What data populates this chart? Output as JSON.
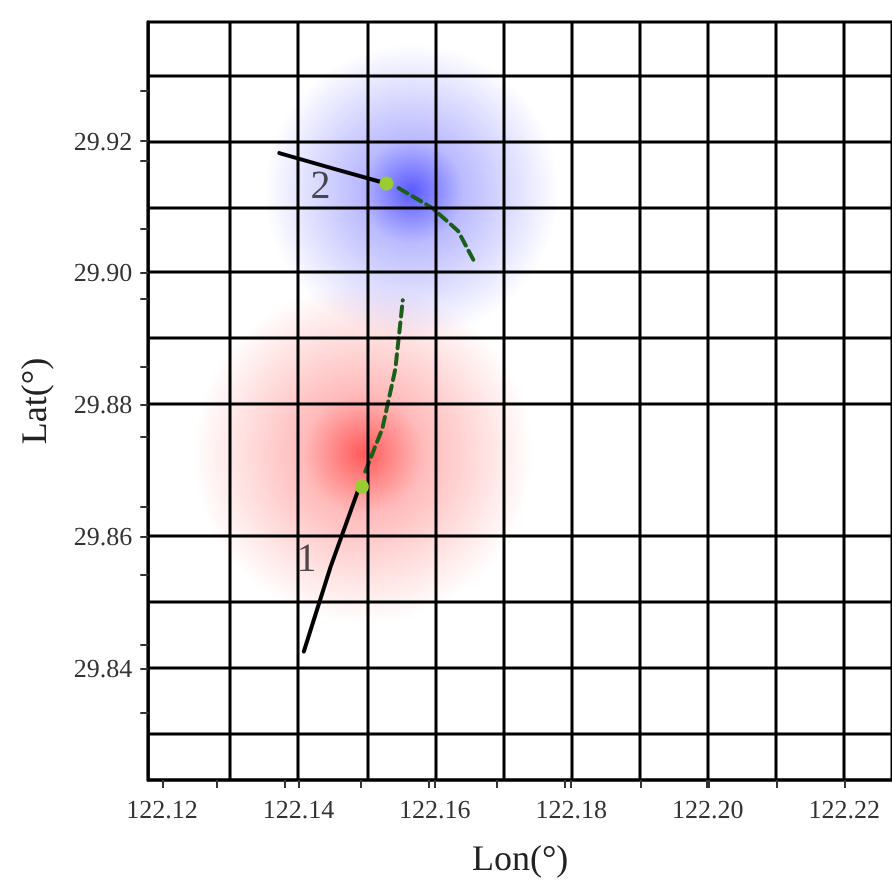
{
  "chart_data": {
    "type": "line",
    "xlabel": "Lon(°)",
    "ylabel": "Lat(°)",
    "xlim": [
      122.118,
      122.227
    ],
    "ylim": [
      29.823,
      29.938
    ],
    "xticks": [
      {
        "value": 122.12,
        "label": "122.12"
      },
      {
        "value": 122.128,
        "label": null
      },
      {
        "value": 122.138,
        "label": null
      },
      {
        "value": 122.14,
        "label": "122.14"
      },
      {
        "value": 122.149,
        "label": null
      },
      {
        "value": 122.159,
        "label": null
      },
      {
        "value": 122.16,
        "label": "122.16"
      },
      {
        "value": 122.169,
        "label": null
      },
      {
        "value": 122.179,
        "label": null
      },
      {
        "value": 122.18,
        "label": "122.18"
      },
      {
        "value": 122.19,
        "label": null
      },
      {
        "value": 122.1997,
        "label": null
      },
      {
        "value": 122.2,
        "label": "122.20"
      },
      {
        "value": 122.21,
        "label": null
      },
      {
        "value": 122.22,
        "label": "122.22"
      },
      {
        "value": 122.2201,
        "label": null
      }
    ],
    "yticks": [
      {
        "value": 29.8333,
        "label": null
      },
      {
        "value": 29.84,
        "label": "29.84"
      },
      {
        "value": 29.8437,
        "label": null
      },
      {
        "value": 29.8541,
        "label": null
      },
      {
        "value": 29.86,
        "label": "29.86"
      },
      {
        "value": 29.8646,
        "label": null
      },
      {
        "value": 29.8751,
        "label": null
      },
      {
        "value": 29.88,
        "label": "29.88"
      },
      {
        "value": 29.8856,
        "label": null
      },
      {
        "value": 29.8961,
        "label": null
      },
      {
        "value": 29.9,
        "label": "29.90"
      },
      {
        "value": 29.9066,
        "label": null
      },
      {
        "value": 29.9171,
        "label": null
      },
      {
        "value": 29.92,
        "label": "29.92"
      },
      {
        "value": 29.9276,
        "label": null
      }
    ],
    "series": [
      {
        "type": "bubble",
        "color": "#ff3030",
        "x": [
          122.1495
        ],
        "values": [
          29.8725
        ],
        "sizes": [
          1
        ]
      },
      {
        "type": "bubble",
        "color": "#3030ff",
        "x": [
          122.1566
        ],
        "values": [
          29.9123
        ],
        "sizes": [
          0.75
        ]
      },
      {
        "color": "#000000",
        "marker": "none",
        "line_style": "solid",
        "x": [
          122.1408,
          122.1447,
          122.1487,
          122.1493
        ],
        "values": [
          29.8425,
          29.8553,
          29.8668,
          29.8675
        ]
      },
      {
        "color": "#1a5e1a",
        "marker": "none",
        "line_style": "dashed",
        "x": [
          122.1498,
          122.1523,
          122.1542,
          122.1553
        ],
        "values": [
          29.8698,
          29.8763,
          29.8853,
          29.8958
        ]
      },
      {
        "color": "#000000",
        "marker": "none",
        "line_style": "solid",
        "x": [
          122.1372,
          122.145,
          122.1529
        ],
        "values": [
          29.9181,
          29.9158,
          29.9135
        ]
      },
      {
        "color": "#1a5e1a",
        "marker": "none",
        "line_style": "dashed",
        "x": [
          122.1547,
          122.1596,
          122.1634,
          122.1657
        ],
        "values": [
          29.9128,
          29.9098,
          29.9063,
          29.9018
        ]
      },
      {
        "type": "scatter",
        "color": "#9acd32",
        "marker": "circle",
        "x": [
          122.1493,
          122.1529
        ],
        "values": [
          29.8675,
          29.9135
        ]
      }
    ],
    "annotations": [
      {
        "text": "1",
        "x": 122.1447,
        "y": 29.8553
      },
      {
        "text": "2",
        "x": 122.145,
        "y": 29.9158
      }
    ],
    "grid": true
  }
}
